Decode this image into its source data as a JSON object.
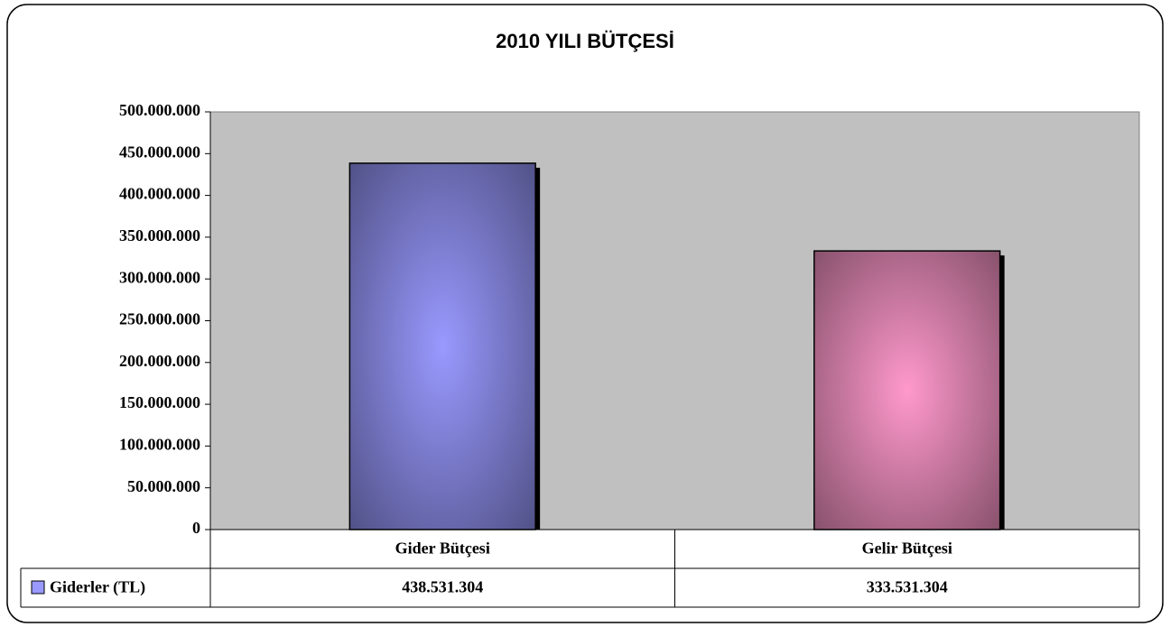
{
  "chart_data": {
    "type": "bar",
    "title": "2010 YILI BÜTÇESİ",
    "categories": [
      "Gider Bütçesi",
      "Gelir Bütçesi"
    ],
    "series": [
      {
        "name": "Giderler (TL)",
        "color": "#9999ff",
        "colors": [
          "#9999ff",
          "#ff99cc"
        ],
        "values": [
          438531304,
          333531304
        ],
        "value_labels": [
          "438.531.304",
          "333.531.304"
        ]
      }
    ],
    "ylim": [
      0,
      500000000
    ],
    "yticks": [
      0,
      {
        "value": 50000000,
        "label": "50.000.000"
      },
      {
        "value": 100000000,
        "label": "100.000.000"
      },
      {
        "value": 150000000,
        "label": "150.000.000"
      },
      {
        "value": 200000000,
        "label": "200.000.000"
      },
      {
        "value": 250000000,
        "label": "250.000.000"
      },
      {
        "value": 300000000,
        "label": "300.000.000"
      },
      {
        "value": 350000000,
        "label": "350.000.000"
      },
      {
        "value": 400000000,
        "label": "400.000.000"
      },
      {
        "value": 450000000,
        "label": "450.000.000"
      },
      {
        "value": 500000000,
        "label": "500.000.000"
      }
    ],
    "grid": false
  }
}
